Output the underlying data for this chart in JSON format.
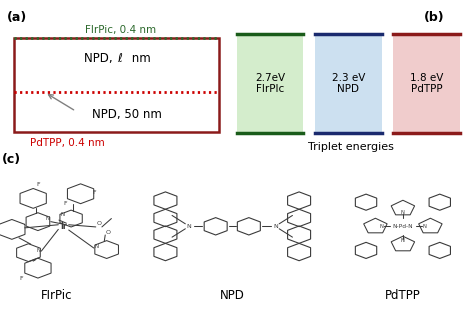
{
  "panel_a": {
    "box_color": "#8B1A1A",
    "dotted_color_top": "#2D6A2D",
    "dotted_color_mid": "#CC0000",
    "label_flirpic": "FIrPic, 0.4 nm",
    "label_flirpic_color": "#2D6A2D",
    "label_npd_top": "NPD, ℓ nm",
    "label_npd_bot": "NPD, 50 nm",
    "label_pdtpp": "PdTPP, 0.4 nm",
    "label_pdtpp_color": "#CC0000",
    "panel_label": "(a)"
  },
  "panel_b": {
    "bar_colors_fill": [
      "#d4edcc",
      "#cce0f0",
      "#f0cccc"
    ],
    "bar_colors_edge": [
      "#1a5c1a",
      "#1a2a6e",
      "#8B1A1A"
    ],
    "bar_labels": [
      "2.7eV\nFIrPlc",
      "2.3 eV\nNPD",
      "1.8 eV\nPdTPP"
    ],
    "xlabel": "Triplet energies",
    "panel_label": "(b)"
  },
  "panel_c": {
    "labels": [
      "FIrPic",
      "NPD",
      "PdTPP"
    ],
    "panel_label": "(c)"
  },
  "struct_color": "#3a3a3a",
  "figure": {
    "bg_color": "#ffffff"
  }
}
